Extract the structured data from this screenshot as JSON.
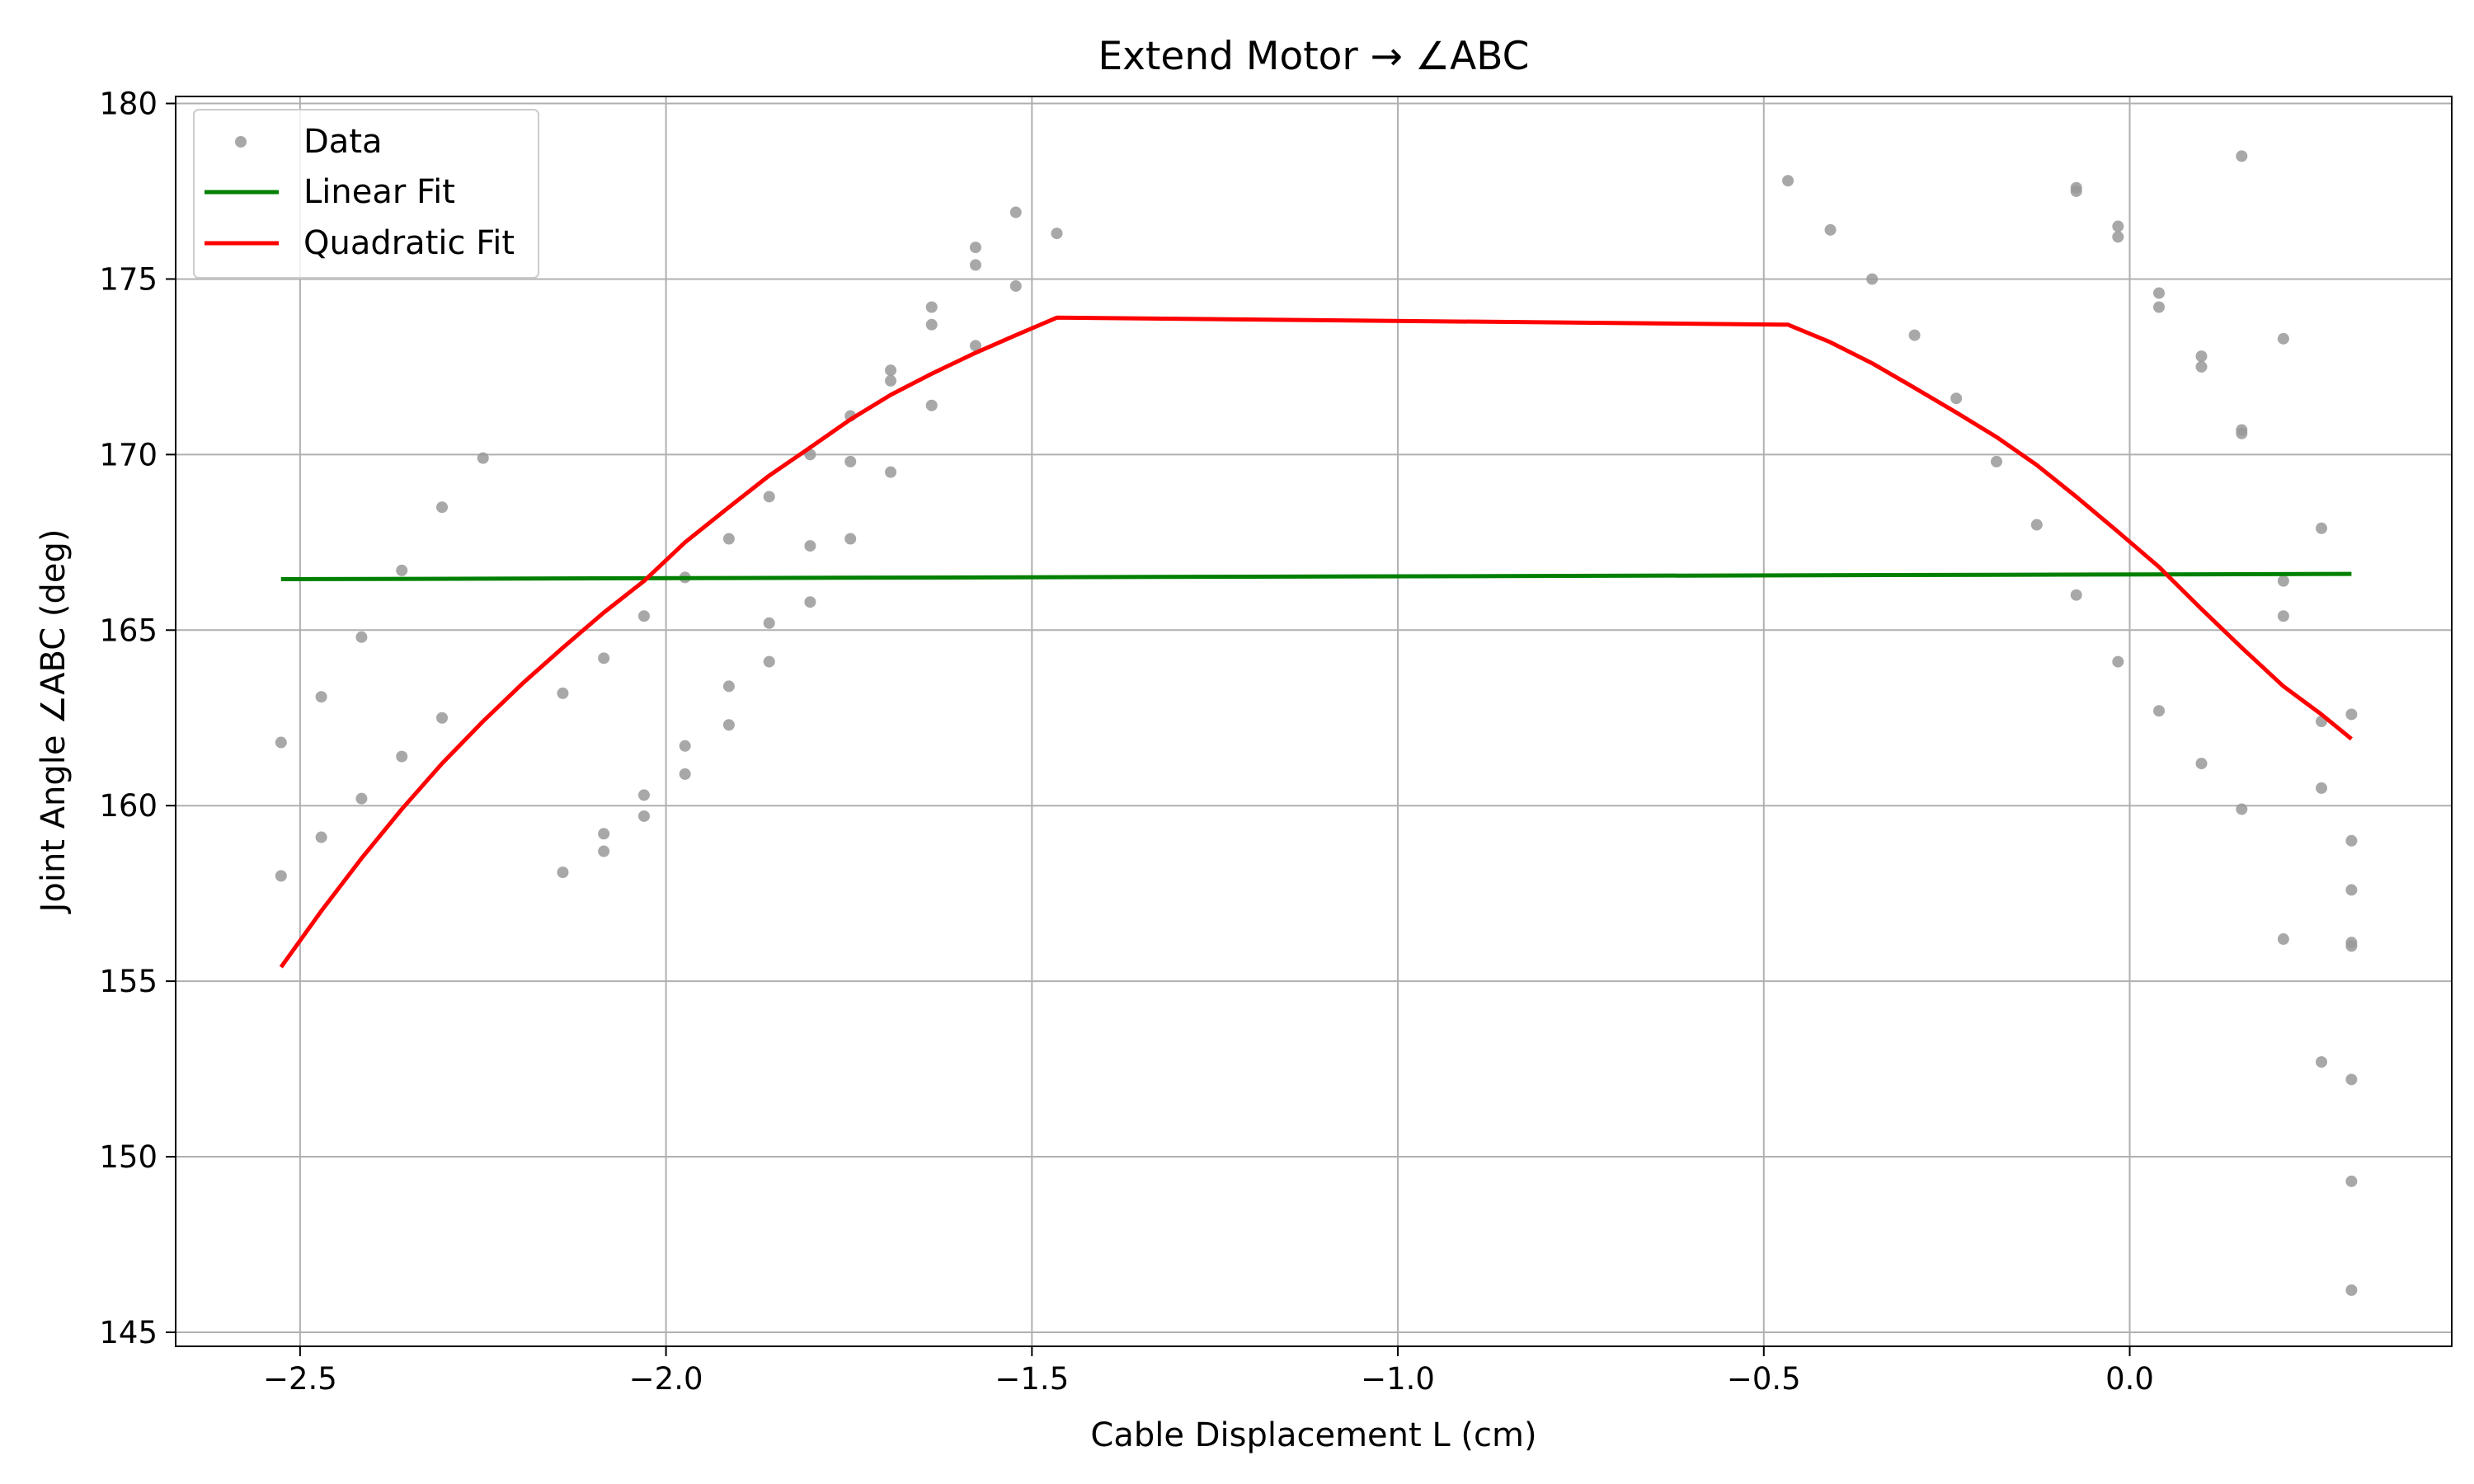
{
  "chart_data": {
    "type": "scatter",
    "title": "Extend Motor → ∠ABC",
    "xlabel": "Cable Displacement L (cm)",
    "ylabel": "Joint Angle ∠ABC (deg)",
    "xlim": [
      -2.67,
      0.44
    ],
    "ylim": [
      144.6,
      180.2
    ],
    "xticks": [
      -2.5,
      -2.0,
      -1.5,
      -1.0,
      -0.5,
      0.0
    ],
    "xtick_labels": [
      "−2.5",
      "−2.0",
      "−1.5",
      "−1.0",
      "−0.5",
      "0.0"
    ],
    "yticks": [
      145,
      150,
      155,
      160,
      165,
      170,
      175,
      180
    ],
    "ytick_labels": [
      "145",
      "150",
      "155",
      "160",
      "165",
      "170",
      "175",
      "180"
    ],
    "grid": true,
    "legend_position": "top-left",
    "legend": [
      "Data",
      "Linear Fit",
      "Quadratic Fit"
    ],
    "colors": {
      "data": "#999999",
      "linear": "#008000",
      "quadratic": "#ff0000"
    },
    "series": [
      {
        "name": "Data",
        "kind": "scatter",
        "points": [
          [
            -2.526,
            161.8
          ],
          [
            -2.526,
            158.0
          ],
          [
            -2.471,
            163.1
          ],
          [
            -2.471,
            159.1
          ],
          [
            -2.416,
            164.8
          ],
          [
            -2.416,
            160.2
          ],
          [
            -2.361,
            166.7
          ],
          [
            -2.361,
            161.4
          ],
          [
            -2.306,
            168.5
          ],
          [
            -2.306,
            162.5
          ],
          [
            -2.25,
            169.9
          ],
          [
            -2.141,
            163.2
          ],
          [
            -2.141,
            158.1
          ],
          [
            -2.085,
            164.2
          ],
          [
            -2.085,
            159.2
          ],
          [
            -2.085,
            158.7
          ],
          [
            -2.03,
            165.4
          ],
          [
            -2.03,
            160.3
          ],
          [
            -2.03,
            159.7
          ],
          [
            -1.974,
            166.5
          ],
          [
            -1.974,
            161.7
          ],
          [
            -1.974,
            160.9
          ],
          [
            -1.914,
            167.6
          ],
          [
            -1.914,
            163.4
          ],
          [
            -1.914,
            162.3
          ],
          [
            -1.859,
            168.8
          ],
          [
            -1.859,
            165.2
          ],
          [
            -1.859,
            164.1
          ],
          [
            -1.803,
            170.0
          ],
          [
            -1.803,
            167.4
          ],
          [
            -1.803,
            165.8
          ],
          [
            -1.748,
            171.1
          ],
          [
            -1.748,
            169.8
          ],
          [
            -1.748,
            167.6
          ],
          [
            -1.693,
            172.4
          ],
          [
            -1.693,
            172.1
          ],
          [
            -1.693,
            169.5
          ],
          [
            -1.637,
            174.2
          ],
          [
            -1.637,
            173.7
          ],
          [
            -1.637,
            171.4
          ],
          [
            -1.577,
            175.9
          ],
          [
            -1.577,
            175.4
          ],
          [
            -1.577,
            173.1
          ],
          [
            -1.522,
            176.9
          ],
          [
            -1.522,
            174.8
          ],
          [
            -1.466,
            176.3
          ],
          [
            -0.467,
            177.8
          ],
          [
            -0.409,
            176.4
          ],
          [
            -0.352,
            175.0
          ],
          [
            -0.294,
            173.4
          ],
          [
            -0.237,
            171.6
          ],
          [
            -0.182,
            169.8
          ],
          [
            -0.127,
            168.0
          ],
          [
            -0.073,
            177.6
          ],
          [
            -0.073,
            177.5
          ],
          [
            -0.073,
            166.0
          ],
          [
            -0.016,
            176.5
          ],
          [
            -0.016,
            176.2
          ],
          [
            -0.016,
            164.1
          ],
          [
            0.04,
            174.6
          ],
          [
            0.04,
            174.2
          ],
          [
            0.04,
            162.7
          ],
          [
            0.098,
            172.8
          ],
          [
            0.098,
            172.5
          ],
          [
            0.098,
            161.2
          ],
          [
            0.153,
            178.5
          ],
          [
            0.153,
            170.7
          ],
          [
            0.153,
            170.6
          ],
          [
            0.153,
            159.9
          ],
          [
            0.21,
            173.3
          ],
          [
            0.21,
            166.4
          ],
          [
            0.21,
            165.4
          ],
          [
            0.21,
            156.2
          ],
          [
            0.262,
            167.9
          ],
          [
            0.262,
            162.4
          ],
          [
            0.262,
            160.5
          ],
          [
            0.262,
            152.7
          ],
          [
            0.303,
            162.6
          ],
          [
            0.303,
            159.0
          ],
          [
            0.303,
            157.6
          ],
          [
            0.303,
            156.1
          ],
          [
            0.303,
            156.0
          ],
          [
            0.303,
            152.2
          ],
          [
            0.303,
            149.3
          ],
          [
            0.303,
            146.2
          ]
        ]
      },
      {
        "name": "Linear Fit",
        "kind": "line",
        "points": [
          [
            -2.526,
            166.45
          ],
          [
            0.303,
            166.6
          ]
        ]
      },
      {
        "name": "Quadratic Fit",
        "kind": "line",
        "points": [
          [
            -2.526,
            155.4
          ],
          [
            -2.471,
            157.0
          ],
          [
            -2.416,
            158.5
          ],
          [
            -2.361,
            159.9
          ],
          [
            -2.306,
            161.2
          ],
          [
            -2.25,
            162.4
          ],
          [
            -2.195,
            163.5
          ],
          [
            -2.141,
            164.5
          ],
          [
            -2.085,
            165.5
          ],
          [
            -2.03,
            166.4
          ],
          [
            -1.974,
            167.5
          ],
          [
            -1.914,
            168.5
          ],
          [
            -1.859,
            169.4
          ],
          [
            -1.803,
            170.2
          ],
          [
            -1.748,
            171.0
          ],
          [
            -1.693,
            171.7
          ],
          [
            -1.637,
            172.3
          ],
          [
            -1.577,
            172.9
          ],
          [
            -1.522,
            173.4
          ],
          [
            -1.466,
            173.9
          ],
          [
            -0.467,
            173.7
          ],
          [
            -0.409,
            173.2
          ],
          [
            -0.352,
            172.6
          ],
          [
            -0.294,
            171.9
          ],
          [
            -0.237,
            171.2
          ],
          [
            -0.182,
            170.5
          ],
          [
            -0.127,
            169.7
          ],
          [
            -0.073,
            168.8
          ],
          [
            -0.016,
            167.8
          ],
          [
            0.04,
            166.8
          ],
          [
            0.098,
            165.6
          ],
          [
            0.153,
            164.5
          ],
          [
            0.21,
            163.4
          ],
          [
            0.262,
            162.6
          ],
          [
            0.303,
            161.9
          ]
        ]
      }
    ]
  }
}
